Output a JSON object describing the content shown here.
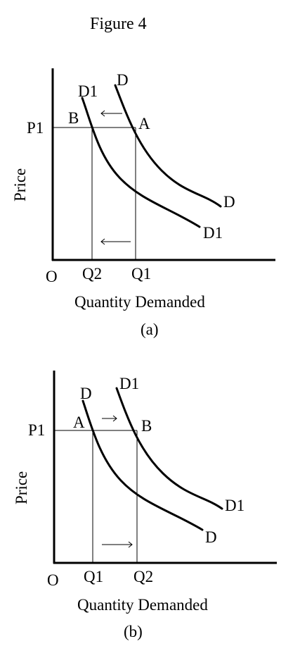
{
  "figure_title": "Figure 4",
  "panel_a": {
    "caption": "(a)",
    "y_axis_label": "Price",
    "x_axis_label": "Quantity Demanded",
    "origin_label": "O",
    "price_label": "P1",
    "q_labels": [
      "Q2",
      "Q1"
    ],
    "curves": [
      {
        "top_label": "D",
        "end_label": "D"
      },
      {
        "top_label": "D1",
        "end_label": "D1"
      }
    ],
    "points": [
      "B",
      "A"
    ]
  },
  "panel_b": {
    "caption": "(b)",
    "y_axis_label": "Price",
    "x_axis_label": "Quantity Demanded",
    "origin_label": "O",
    "price_label": "P1",
    "q_labels": [
      "Q1",
      "Q2"
    ],
    "curves": [
      {
        "top_label": "D",
        "end_label": "D"
      },
      {
        "top_label": "D1",
        "end_label": "D1"
      }
    ],
    "points": [
      "A",
      "B"
    ]
  }
}
